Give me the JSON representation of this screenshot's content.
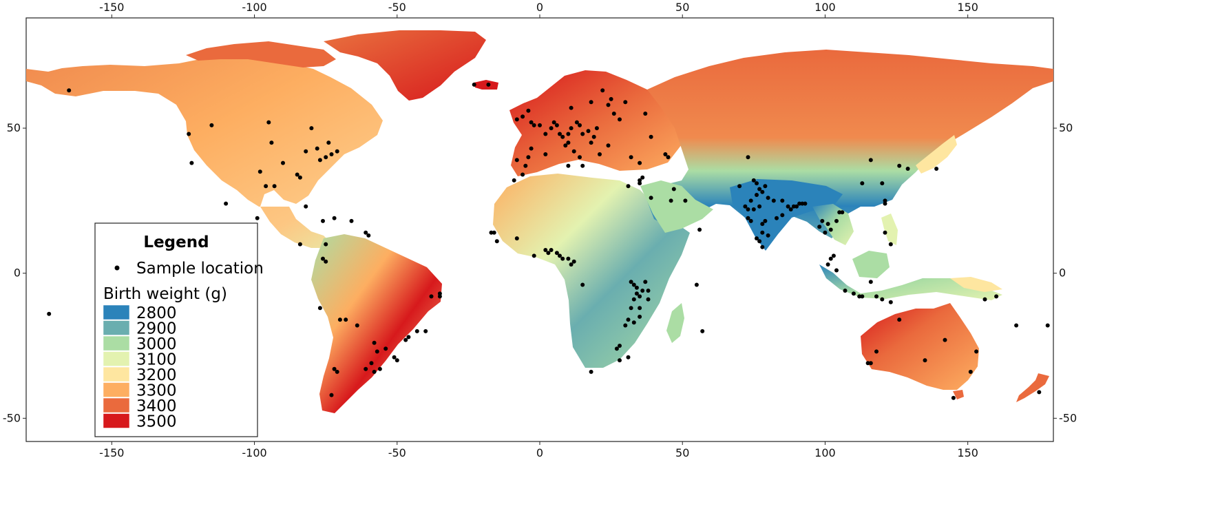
{
  "map": {
    "x_ticks": [
      "-150",
      "-100",
      "-50",
      "0",
      "50",
      "100",
      "150"
    ],
    "y_ticks": [
      "50",
      "0",
      "-50"
    ],
    "x_tick_values": [
      -150,
      -100,
      -50,
      0,
      50,
      100,
      150
    ],
    "y_tick_values": [
      50,
      0,
      -50
    ],
    "lon_range": [
      -180,
      180
    ],
    "lat_range": [
      -58,
      88
    ]
  },
  "legend": {
    "title": "Legend",
    "point_label": "Sample location",
    "scale_title": "Birth weight (g)",
    "classes": [
      {
        "label": "2800",
        "color": "#2b83ba"
      },
      {
        "label": "2900",
        "color": "#6aaeaf"
      },
      {
        "label": "3000",
        "color": "#abdda4"
      },
      {
        "label": "3100",
        "color": "#e3f2b0"
      },
      {
        "label": "3200",
        "color": "#fee6a0"
      },
      {
        "label": "3300",
        "color": "#fdae61"
      },
      {
        "label": "3400",
        "color": "#ea6a3d"
      },
      {
        "label": "3500",
        "color": "#d7191c"
      }
    ]
  }
}
